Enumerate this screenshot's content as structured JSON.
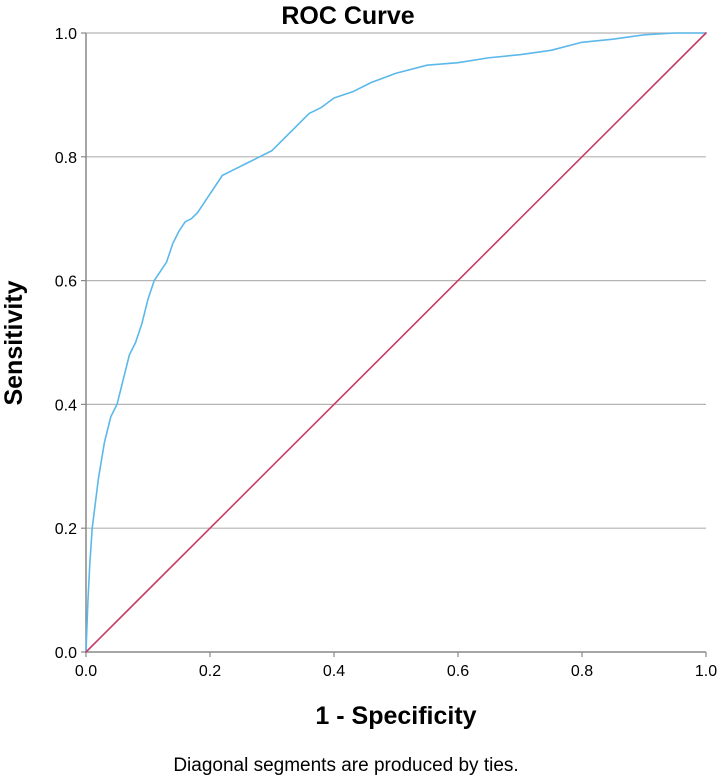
{
  "chart_data": {
    "type": "line",
    "title": "ROC Curve",
    "xlabel": "1 - Specificity",
    "ylabel": "Sensitivity",
    "xlim": [
      0.0,
      1.0
    ],
    "ylim": [
      0.0,
      1.0
    ],
    "xticks": [
      "0.0",
      "0.2",
      "0.4",
      "0.6",
      "0.8",
      "1.0"
    ],
    "yticks": [
      "0.0",
      "0.2",
      "0.4",
      "0.6",
      "0.8",
      "1.0"
    ],
    "grid": "horizontal",
    "footnote": "Diagonal segments are produced by ties.",
    "series": [
      {
        "name": "ROC curve",
        "color": "#5cb8ea",
        "x": [
          0.0,
          0.003,
          0.006,
          0.01,
          0.015,
          0.02,
          0.03,
          0.04,
          0.05,
          0.06,
          0.07,
          0.08,
          0.09,
          0.1,
          0.11,
          0.12,
          0.13,
          0.14,
          0.15,
          0.16,
          0.17,
          0.18,
          0.2,
          0.22,
          0.24,
          0.26,
          0.28,
          0.3,
          0.32,
          0.34,
          0.36,
          0.38,
          0.4,
          0.43,
          0.46,
          0.5,
          0.55,
          0.6,
          0.65,
          0.7,
          0.75,
          0.8,
          0.85,
          0.9,
          0.95,
          1.0
        ],
        "y": [
          0.0,
          0.08,
          0.14,
          0.2,
          0.24,
          0.28,
          0.34,
          0.38,
          0.4,
          0.44,
          0.48,
          0.5,
          0.53,
          0.57,
          0.6,
          0.615,
          0.63,
          0.66,
          0.68,
          0.695,
          0.7,
          0.71,
          0.74,
          0.77,
          0.78,
          0.79,
          0.8,
          0.81,
          0.83,
          0.85,
          0.87,
          0.88,
          0.895,
          0.905,
          0.92,
          0.935,
          0.948,
          0.952,
          0.96,
          0.965,
          0.972,
          0.985,
          0.99,
          0.997,
          1.0,
          1.0
        ]
      },
      {
        "name": "Reference line",
        "color": "#c83c64",
        "x": [
          0.0,
          1.0
        ],
        "y": [
          0.0,
          1.0
        ]
      }
    ]
  }
}
